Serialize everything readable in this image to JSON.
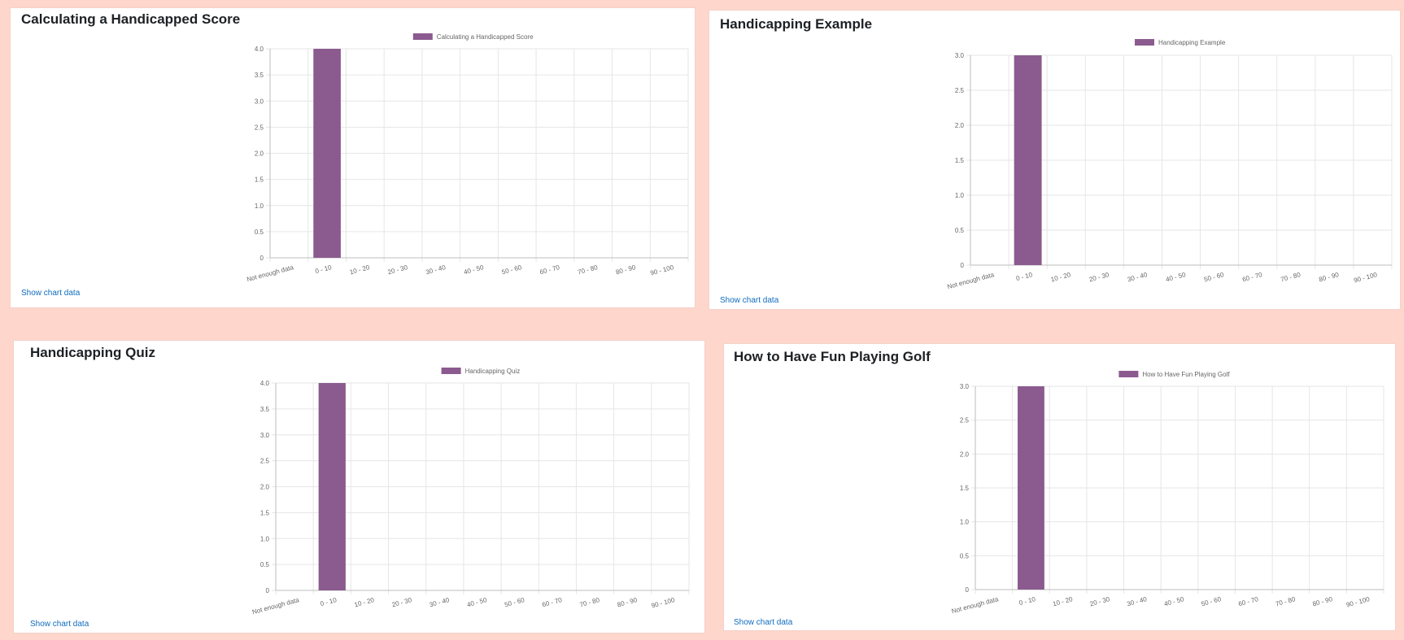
{
  "colors": {
    "bar": "#8b5a8f",
    "grid": "#e6e6e6",
    "axis": "#bdbdbd",
    "tick_text": "#666666",
    "link": "#0f6cbf"
  },
  "charts": [
    {
      "title": "Calculating a Handicapped Score",
      "show_link": "Show chart data",
      "chart_data": {
        "type": "bar",
        "categories": [
          "Not enough data",
          "0 - 10",
          "10 - 20",
          "20 - 30",
          "30 - 40",
          "40 - 50",
          "50 - 60",
          "60 - 70",
          "70 - 80",
          "80 - 90",
          "90 - 100"
        ],
        "series": [
          {
            "name": "Calculating a Handicapped Score",
            "values": [
              0,
              4,
              0,
              0,
              0,
              0,
              0,
              0,
              0,
              0,
              0
            ]
          }
        ],
        "ylim": [
          0,
          4.0
        ],
        "yticks": [
          "0",
          "0.5",
          "1.0",
          "1.5",
          "2.0",
          "2.5",
          "3.0",
          "3.5",
          "4.0"
        ],
        "legend": "top",
        "grid": true
      }
    },
    {
      "title": "Handicapping Example",
      "show_link": "Show chart data",
      "chart_data": {
        "type": "bar",
        "categories": [
          "Not enough data",
          "0 - 10",
          "10 - 20",
          "20 - 30",
          "30 - 40",
          "40 - 50",
          "50 - 60",
          "60 - 70",
          "70 - 80",
          "80 - 90",
          "90 - 100"
        ],
        "series": [
          {
            "name": "Handicapping Example",
            "values": [
              0,
              3,
              0,
              0,
              0,
              0,
              0,
              0,
              0,
              0,
              0
            ]
          }
        ],
        "ylim": [
          0,
          3.0
        ],
        "yticks": [
          "0",
          "0.5",
          "1.0",
          "1.5",
          "2.0",
          "2.5",
          "3.0"
        ],
        "legend": "top",
        "grid": true
      }
    },
    {
      "title": "Handicapping Quiz",
      "show_link": "Show chart data",
      "chart_data": {
        "type": "bar",
        "categories": [
          "Not enough data",
          "0 - 10",
          "10 - 20",
          "20 - 30",
          "30 - 40",
          "40 - 50",
          "50 - 60",
          "60 - 70",
          "70 - 80",
          "80 - 90",
          "90 - 100"
        ],
        "series": [
          {
            "name": "Handicapping Quiz",
            "values": [
              0,
              4,
              0,
              0,
              0,
              0,
              0,
              0,
              0,
              0,
              0
            ]
          }
        ],
        "ylim": [
          0,
          4.0
        ],
        "yticks": [
          "0",
          "0.5",
          "1.0",
          "1.5",
          "2.0",
          "2.5",
          "3.0",
          "3.5",
          "4.0"
        ],
        "legend": "top",
        "grid": true
      }
    },
    {
      "title": "How to Have Fun Playing Golf",
      "show_link": "Show chart data",
      "chart_data": {
        "type": "bar",
        "categories": [
          "Not enough data",
          "0 - 10",
          "10 - 20",
          "20 - 30",
          "30 - 40",
          "40 - 50",
          "50 - 60",
          "60 - 70",
          "70 - 80",
          "80 - 90",
          "90 - 100"
        ],
        "series": [
          {
            "name": "How to Have Fun Playing Golf",
            "values": [
              0,
              3,
              0,
              0,
              0,
              0,
              0,
              0,
              0,
              0,
              0
            ]
          }
        ],
        "ylim": [
          0,
          3.0
        ],
        "yticks": [
          "0",
          "0.5",
          "1.0",
          "1.5",
          "2.0",
          "2.5",
          "3.0"
        ],
        "legend": "top",
        "grid": true
      }
    }
  ]
}
